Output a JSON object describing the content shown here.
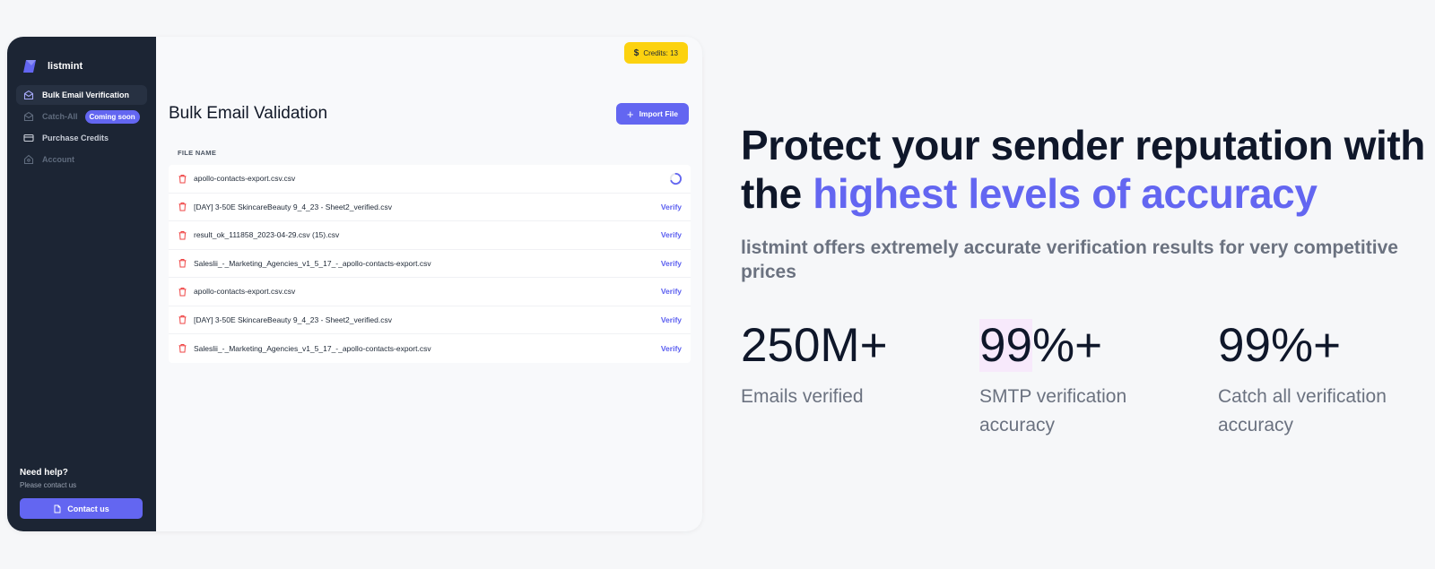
{
  "app": {
    "brand": "listmint",
    "nav": [
      {
        "label": "Bulk Email Verification"
      },
      {
        "label": "Catch-All",
        "badge": "Coming soon"
      },
      {
        "label": "Purchase Credits"
      },
      {
        "label": "Account"
      }
    ],
    "help": {
      "title": "Need help?",
      "subtitle": "Please contact us",
      "button": "Contact us"
    },
    "credits": {
      "symbol": "$",
      "label": "Credits: 13"
    },
    "page_title": "Bulk Email Validation",
    "import_button": "Import File",
    "table": {
      "header": "FILE NAME",
      "rows": [
        {
          "name": "apollo-contacts-export.csv.csv",
          "status": "loading"
        },
        {
          "name": "[DAY] 3-50E SkincareBeauty 9_4_23 - Sheet2_verified.csv",
          "action": "Verify"
        },
        {
          "name": "result_ok_111858_2023-04-29.csv (15).csv",
          "action": "Verify"
        },
        {
          "name": "Saleslii_-_Marketing_Agencies_v1_5_17_-_apollo-contacts-export.csv",
          "action": "Verify"
        },
        {
          "name": "apollo-contacts-export.csv.csv",
          "action": "Verify"
        },
        {
          "name": "[DAY] 3-50E SkincareBeauty 9_4_23 - Sheet2_verified.csv",
          "action": "Verify"
        },
        {
          "name": "Saleslii_-_Marketing_Agencies_v1_5_17_-_apollo-contacts-export.csv",
          "action": "Verify"
        }
      ]
    }
  },
  "hero": {
    "headline_part1": "Protect your sender reputation with the ",
    "headline_accent": "highest levels of accuracy",
    "subhead": "listmint offers extremely accurate verification results for very competitive prices",
    "stats": [
      {
        "value": "250M+",
        "label": "Emails verified"
      },
      {
        "value_hl": "99",
        "value_rest": "%+",
        "label": "SMTP verification accuracy"
      },
      {
        "value": "99%+",
        "label": "Catch all verification accuracy"
      }
    ]
  },
  "colors": {
    "accent": "#6366f1",
    "sidebar": "#1c2534",
    "credits": "#fcd20f",
    "danger": "#ef4444"
  }
}
